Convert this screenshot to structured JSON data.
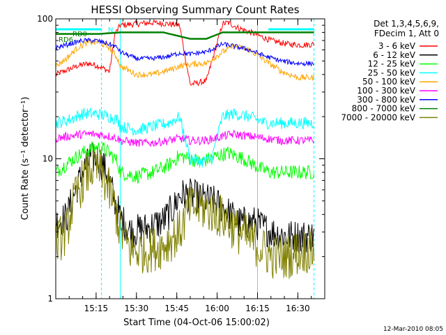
{
  "chart_data": {
    "type": "line",
    "title": "HESSI Observing Summary Count Rates",
    "xlabel": "Start Time (04-Oct-06 15:00:02)",
    "ylabel": "Count Rate (s⁻¹ detector⁻¹)",
    "footer": "12-Mar-2010 08:05",
    "x_unit": "minutes after 15:00:02",
    "xlim": [
      0,
      100
    ],
    "ylim": [
      1,
      100
    ],
    "y_scale": "log",
    "x_ticks": [
      {
        "m": 15,
        "label": "15:15"
      },
      {
        "m": 30,
        "label": "15:30"
      },
      {
        "m": 45,
        "label": "15:45"
      },
      {
        "m": 60,
        "label": "16:00"
      },
      {
        "m": 75,
        "label": "16:15"
      },
      {
        "m": 90,
        "label": "16:30"
      }
    ],
    "y_ticks": [
      {
        "v": 1,
        "label": "1"
      },
      {
        "v": 10,
        "label": "10"
      },
      {
        "v": 100,
        "label": "100"
      }
    ],
    "legend_header": [
      "Det 1,3,4,5,6,9,",
      "FDecim 1, Att 0"
    ],
    "legend_position": "right",
    "series": [
      {
        "name": "3 - 6 keV",
        "color": "#ff0000",
        "x": [
          0,
          8,
          12,
          16,
          20,
          22,
          24,
          30,
          36,
          42,
          46,
          50,
          56,
          62,
          64,
          68,
          74,
          80,
          86,
          92,
          96
        ],
        "y": [
          40,
          46,
          48,
          46,
          42,
          78,
          90,
          92,
          94,
          92,
          90,
          34,
          36,
          92,
          94,
          86,
          78,
          70,
          66,
          65,
          66
        ]
      },
      {
        "name": "6 - 12 keV",
        "color": "#000000",
        "x": [
          0,
          4,
          6,
          10,
          13,
          16,
          19,
          22,
          24,
          28,
          34,
          40,
          44,
          46,
          50,
          54,
          58,
          62,
          68,
          74,
          80,
          86,
          92,
          96
        ],
        "y": [
          3.5,
          3.8,
          5,
          8,
          10,
          10,
          8,
          5,
          3.8,
          3.0,
          3.2,
          3.6,
          4.5,
          5.5,
          5.5,
          5.2,
          5.0,
          4.5,
          3.5,
          3.5,
          3.0,
          2.8,
          2.8,
          2.8
        ]
      },
      {
        "name": "12 - 25 keV",
        "color": "#00ff00",
        "x": [
          0,
          5,
          10,
          14,
          17,
          20,
          23,
          24,
          30,
          36,
          42,
          46,
          50,
          54,
          60,
          64,
          70,
          76,
          80,
          86,
          92,
          96
        ],
        "y": [
          8,
          9.5,
          11,
          12,
          12,
          11,
          9.5,
          8,
          7.5,
          8,
          9,
          10.5,
          10,
          9.5,
          10.5,
          11,
          10,
          8.5,
          8,
          8,
          8,
          8
        ]
      },
      {
        "name": "25 - 50 keV",
        "color": "#00ffff",
        "x": [
          0,
          5,
          10,
          15,
          20,
          23,
          24,
          30,
          36,
          42,
          46,
          50,
          54,
          58,
          62,
          66,
          72,
          78,
          86,
          92,
          96
        ],
        "y": [
          18,
          19,
          21,
          21,
          20,
          19,
          17,
          16,
          17,
          18,
          20,
          10,
          9.5,
          10,
          20,
          21,
          20,
          18,
          18,
          18,
          18
        ]
      },
      {
        "name": "50 - 100 keV",
        "color": "#ffa500",
        "x": [
          0,
          4,
          8,
          12,
          16,
          20,
          23,
          24,
          30,
          36,
          42,
          46,
          50,
          53,
          56,
          62,
          66,
          72,
          78,
          84,
          90,
          96
        ],
        "y": [
          46,
          52,
          62,
          68,
          68,
          62,
          52,
          46,
          40,
          40,
          43,
          46,
          47,
          48,
          48,
          58,
          64,
          60,
          50,
          42,
          38,
          38
        ]
      },
      {
        "name": "100 - 300 keV",
        "color": "#ff00ff",
        "x": [
          0,
          5,
          10,
          15,
          20,
          23,
          24,
          30,
          36,
          42,
          46,
          50,
          56,
          62,
          66,
          72,
          78,
          84,
          90,
          96
        ],
        "y": [
          14,
          14.5,
          15,
          15,
          14.5,
          14,
          13.5,
          13,
          13,
          13.5,
          14,
          13.5,
          13.5,
          14.5,
          15,
          14.5,
          14,
          13.5,
          13.5,
          13.5
        ]
      },
      {
        "name": "300 - 800 keV",
        "color": "#0000ff",
        "x": [
          0,
          5,
          10,
          15,
          20,
          23,
          24,
          30,
          36,
          42,
          46,
          50,
          56,
          62,
          66,
          72,
          78,
          84,
          90,
          96
        ],
        "y": [
          62,
          66,
          70,
          70,
          66,
          62,
          58,
          52,
          52,
          54,
          57,
          56,
          58,
          66,
          64,
          60,
          54,
          50,
          48,
          48
        ]
      },
      {
        "name": "800 - 7000 keV",
        "color": "#008000",
        "x": [
          0,
          8,
          16,
          24,
          30,
          40,
          50,
          56,
          62,
          70,
          80,
          90,
          96
        ],
        "y": [
          78,
          78,
          78,
          80,
          80,
          80,
          72,
          72,
          80,
          80,
          80,
          80,
          80
        ]
      },
      {
        "name": "7000 - 20000 keV",
        "color": "#808000",
        "x": [
          0,
          4,
          6,
          10,
          13,
          16,
          19,
          22,
          24,
          28,
          34,
          40,
          46,
          50,
          54,
          58,
          62,
          68,
          74,
          80,
          86,
          92,
          96
        ],
        "y": [
          2.5,
          3.0,
          4.5,
          7,
          8.5,
          8.5,
          6.5,
          4.5,
          3.0,
          2.2,
          2.2,
          2.4,
          3.0,
          4.5,
          4.5,
          4.2,
          3.8,
          3.0,
          2.5,
          2.0,
          2.0,
          2.2,
          2.2
        ]
      }
    ],
    "annotations": [
      {
        "text": "RD0",
        "color": "#008000"
      },
      {
        "text": "RD6",
        "color": "#008000"
      },
      {
        "text": "N",
        "color": "#00ffff"
      }
    ],
    "vertical_markers": {
      "solid": [
        24,
        75
      ],
      "dashed": [
        17,
        96
      ],
      "color": "#00ffff"
    },
    "top_bars": [
      {
        "x": [
          0,
          17
        ],
        "color": "#00ffff"
      },
      {
        "x": [
          79,
          96
        ],
        "color": "#00ffff"
      }
    ]
  }
}
